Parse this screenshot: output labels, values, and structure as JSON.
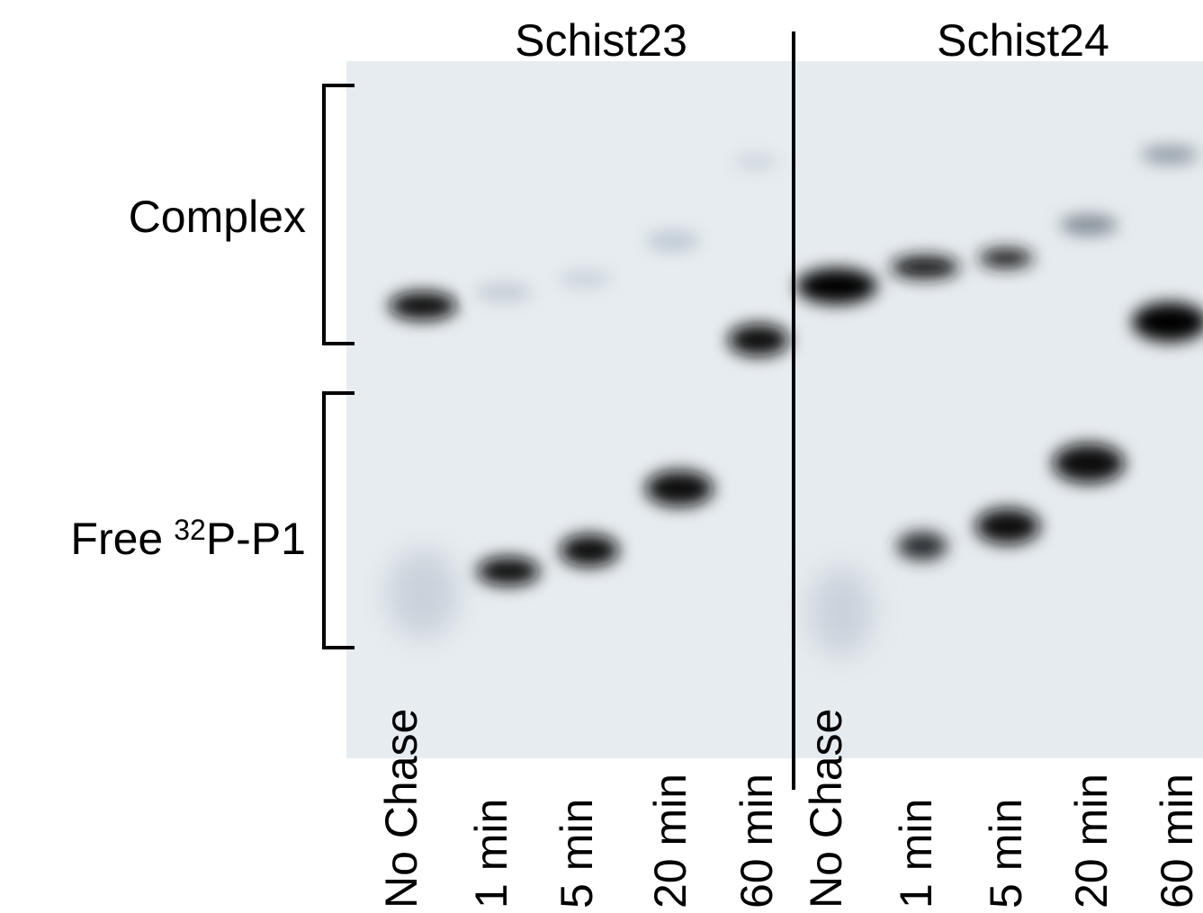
{
  "panels": [
    {
      "title": "Schist23",
      "lanes": [
        "No Chase",
        "1 min",
        "5 min",
        "20 min",
        "60 min"
      ]
    },
    {
      "title": "Schist24",
      "lanes": [
        "No Chase",
        "1 min",
        "5 min",
        "20 min",
        "60 min"
      ]
    }
  ],
  "row_labels": {
    "complex": "Complex",
    "free": {
      "prefix": "Free",
      "superscript": "32",
      "suffix": "P-P1"
    }
  }
}
